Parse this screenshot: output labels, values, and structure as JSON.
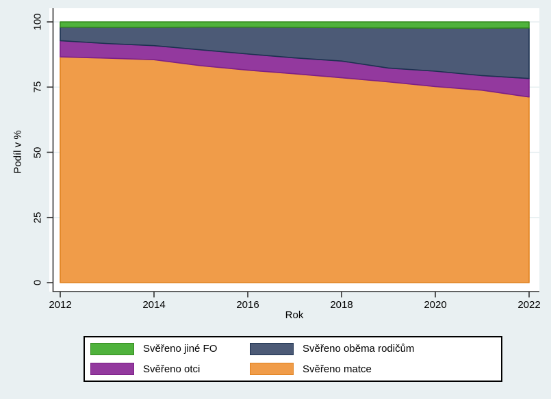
{
  "chart_data": {
    "type": "area",
    "stacked": true,
    "title": "",
    "xlabel": "Rok",
    "ylabel": "Podíl v %",
    "x": [
      2012,
      2013,
      2014,
      2015,
      2016,
      2017,
      2018,
      2019,
      2020,
      2021,
      2022
    ],
    "xlim": [
      2012,
      2022
    ],
    "ylim": [
      0,
      100
    ],
    "x_tick_labels": [
      "2012",
      "2014",
      "2016",
      "2018",
      "2020",
      "2022"
    ],
    "x_tick_values": [
      2012,
      2014,
      2016,
      2018,
      2020,
      2022
    ],
    "y_tick_labels": [
      "0",
      "25",
      "50",
      "75",
      "100"
    ],
    "y_tick_values": [
      0,
      25,
      50,
      75,
      100
    ],
    "grid": "horizontal",
    "legend_position": "bottom",
    "series": [
      {
        "name": "Svěřeno matce",
        "fill": "#f09c49",
        "stroke": "#e0821f",
        "values": [
          86.6,
          86.1,
          85.5,
          83.2,
          81.5,
          80.1,
          78.6,
          77.0,
          75.2,
          73.8,
          71.2
        ]
      },
      {
        "name": "Svěřeno otci",
        "fill": "#93399e",
        "stroke": "#7c1f87",
        "values": [
          6.2,
          5.6,
          5.4,
          6.1,
          6.2,
          6.1,
          6.4,
          5.3,
          5.9,
          5.6,
          7.1
        ]
      },
      {
        "name": "Svěřeno oběma rodičům",
        "fill": "#4c5a76",
        "stroke": "#1c3150",
        "values": [
          5.2,
          6.2,
          7.0,
          8.7,
          10.3,
          11.7,
          12.8,
          15.4,
          16.5,
          18.2,
          19.4
        ]
      },
      {
        "name": "Svěřeno jiné FO",
        "fill": "#4fb23c",
        "stroke": "#348a1e",
        "values": [
          2.0,
          2.1,
          2.1,
          2.0,
          2.0,
          2.1,
          2.2,
          2.3,
          2.4,
          2.4,
          2.3
        ]
      }
    ]
  },
  "axes": {
    "ylabel": "Podíl v %",
    "xlabel": "Rok",
    "yticks": [
      "0",
      "25",
      "50",
      "75",
      "100"
    ],
    "xticks": [
      "2012",
      "2014",
      "2016",
      "2018",
      "2020",
      "2022"
    ]
  },
  "legend": {
    "items": [
      {
        "label": "Svěřeno jiné FO",
        "color": "#4fb23c",
        "border": "#348a1e"
      },
      {
        "label": "Svěřeno oběma rodičům",
        "color": "#4c5a76",
        "border": "#1c3150"
      },
      {
        "label": "Svěřeno otci",
        "color": "#93399e",
        "border": "#7c1f87"
      },
      {
        "label": "Svěřeno matce",
        "color": "#f09c49",
        "border": "#e0821f"
      }
    ]
  },
  "colors": {
    "background": "#e9f0f2",
    "plot_background": "#ffffff",
    "gridline": "#e1ebee",
    "axis": "#303030",
    "text": "#000000"
  }
}
